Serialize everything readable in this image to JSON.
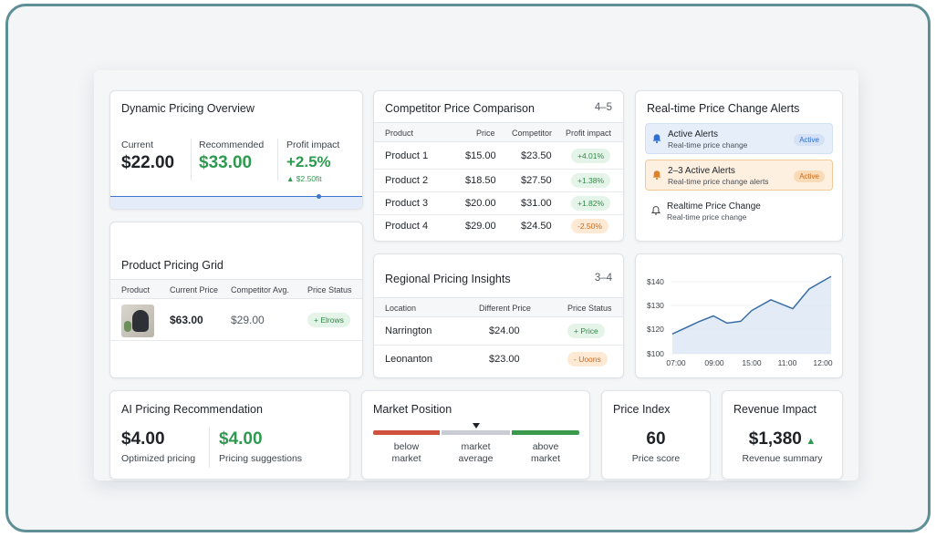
{
  "colors": {
    "accent": "#2f6fd1",
    "positive": "#2e9a4f",
    "warning": "#d9822b",
    "negative": "#c9513c"
  },
  "pricing_overview": {
    "title": "Dynamic Pricing Overview",
    "current_label": "Current",
    "current_value": "$22.00",
    "recommended_label": "Recommended",
    "recommended_value": "$33.00",
    "profit_label": "Profit impact",
    "profit_value": "+2.5%",
    "profit_sub": "$2.50fit"
  },
  "competitor": {
    "title": "Competitor Price Comparison",
    "count": "4–5",
    "headers": [
      "Product",
      "Price",
      "Competitor",
      "Profit impact"
    ],
    "rows": [
      {
        "product": "Product 1",
        "price": "$15.00",
        "competitor": "$23.50",
        "impact": "+4.01%",
        "tone": "green"
      },
      {
        "product": "Product 2",
        "price": "$18.50",
        "competitor": "$27.50",
        "impact": "+1.38%",
        "tone": "green"
      },
      {
        "product": "Product 3",
        "price": "$20.00",
        "competitor": "$31.00",
        "impact": "+1.82%",
        "tone": "green"
      },
      {
        "product": "Product 4",
        "price": "$29.00",
        "competitor": "$24.50",
        "impact": "-2.50%",
        "tone": "orange"
      }
    ]
  },
  "alerts": {
    "title": "Real-time Price Change Alerts",
    "items": [
      {
        "title": "Active Alerts",
        "sub": "Real-time price change",
        "badge": "Active",
        "icon": "bell-icon"
      },
      {
        "title": "2–3 Active Alerts",
        "sub": "Real-time price change alerts",
        "badge": "Active",
        "icon": "bell-icon"
      },
      {
        "title": "Realtime Price Change",
        "sub": "Real-time price change",
        "badge": "",
        "icon": "bell-outline-icon"
      }
    ]
  },
  "pricing_grid": {
    "title": "Product Pricing Grid",
    "headers": [
      "Product",
      "Current Price",
      "Competitor Avg.",
      "Price Status"
    ],
    "row": {
      "current": "$63.00",
      "competitor": "$29.00",
      "status": "+ Elrows"
    }
  },
  "regional": {
    "title": "Regional Pricing Insights",
    "count": "3–4",
    "headers": [
      "Location",
      "Different Price",
      "Price Status"
    ],
    "rows": [
      {
        "location": "Narrington",
        "price": "$24.00",
        "status": "+ Price",
        "tone": "green"
      },
      {
        "location": "Leonanton",
        "price": "$23.00",
        "status": "- Uoons",
        "tone": "orange"
      }
    ]
  },
  "chart_data": {
    "type": "area",
    "x": [
      "07:00",
      "09:00",
      "15:00",
      "11:00",
      "12:00"
    ],
    "y_ticks": [
      "$140",
      "$130",
      "$120",
      "$100"
    ],
    "ylim": [
      100,
      140
    ],
    "points": [
      {
        "x": 0.0,
        "y": 111
      },
      {
        "x": 0.2,
        "y": 118
      },
      {
        "x": 0.3,
        "y": 121
      },
      {
        "x": 0.4,
        "y": 117
      },
      {
        "x": 0.5,
        "y": 118
      },
      {
        "x": 0.58,
        "y": 124
      },
      {
        "x": 0.72,
        "y": 130
      },
      {
        "x": 0.88,
        "y": 125
      },
      {
        "x": 1.0,
        "y": 136
      },
      {
        "x": 1.16,
        "y": 143
      }
    ],
    "color": "#3a6ea5",
    "fill": "#dbe6f4"
  },
  "ai_rec": {
    "title": "AI Pricing Recommendation",
    "optimized_value": "$4.00",
    "optimized_label": "Optimized pricing",
    "suggest_value": "$4.00",
    "suggest_label": "Pricing suggestions"
  },
  "market": {
    "title": "Market Position",
    "segments": [
      {
        "label_1": "below",
        "label_2": "market",
        "color": "#d0513d"
      },
      {
        "label_1": "market",
        "label_2": "average",
        "color": "#c9ccd3"
      },
      {
        "label_1": "above",
        "label_2": "market",
        "color": "#3c9a4d"
      }
    ],
    "marker_position": 0.5
  },
  "price_index": {
    "title": "Price Index",
    "value": "60",
    "label": "Price score"
  },
  "revenue": {
    "title": "Revenue Impact",
    "value": "$1,380",
    "label": "Revenue summary"
  }
}
